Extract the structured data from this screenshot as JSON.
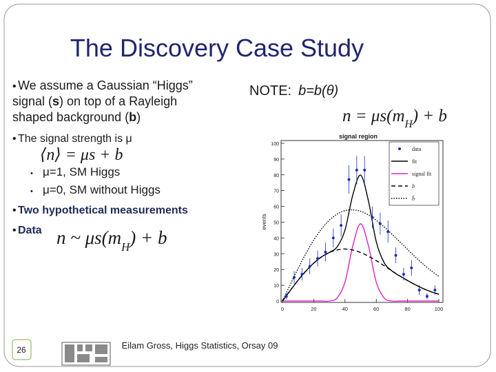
{
  "header": {
    "title": "The Discovery Case Study"
  },
  "bullets": {
    "intro": [
      [
        {
          "t": "We assume a Gaussian “Higgs”"
        }
      ],
      [
        {
          "t": "signal ("
        },
        {
          "t": "s",
          "bold": true
        },
        {
          "t": ") on top of a Rayleigh"
        }
      ],
      [
        {
          "t": "shaped background ("
        },
        {
          "t": "b",
          "bold": true
        },
        {
          "t": ")"
        }
      ]
    ],
    "strength": "The signal strength is μ",
    "strength_formula": [
      {
        "t": "⟨n⟩ = μs + b"
      }
    ],
    "cases": [
      "μ=1, SM Higgs",
      "μ=0, SM without Higgs"
    ],
    "measurements": "Two hypothetical measurements",
    "data": "Data",
    "data_formula": [
      {
        "t": "n ~ μs(m"
      },
      {
        "t": "H",
        "sub": true
      },
      {
        "t": ") + b"
      }
    ]
  },
  "note": {
    "label": "NOTE:",
    "text": "b=b(θ)",
    "formula": [
      {
        "t": "n = μs(m"
      },
      {
        "t": "H",
        "sub": true
      },
      {
        "t": ") + b"
      }
    ]
  },
  "footer": {
    "text": "Eilam Gross, Higgs Statistics, Orsay 09",
    "page": "26"
  },
  "chart_data": {
    "type": "line",
    "title": "signal region",
    "ylabel": "events",
    "xlim": [
      0,
      100
    ],
    "xticks": [
      0,
      20,
      40,
      60,
      80,
      100
    ],
    "ylim": [
      0,
      100
    ],
    "yticks": [
      0,
      10,
      20,
      30,
      40,
      50,
      60,
      70,
      80,
      90,
      100
    ],
    "points": {
      "name": "data",
      "color": "#1a2fb0",
      "x": [
        2.5,
        7.5,
        12.5,
        17.5,
        22.5,
        27.5,
        32.5,
        37.5,
        42.5,
        47.5,
        52.5,
        57.5,
        62.5,
        67.5,
        72.5,
        77.5,
        82.5,
        87.5,
        92.5,
        97.5
      ],
      "values": [
        3,
        15,
        17,
        22,
        27,
        31,
        40,
        48,
        77,
        83,
        83,
        53,
        49,
        44,
        29,
        17,
        21,
        7,
        3,
        7
      ],
      "errors": [
        2,
        4,
        4,
        5,
        5,
        6,
        6,
        7,
        9,
        9,
        9,
        7,
        7,
        7,
        5,
        4,
        5,
        3,
        2,
        3
      ]
    },
    "x": [
      0,
      5,
      10,
      15,
      20,
      25,
      30,
      35,
      40,
      45,
      50,
      55,
      60,
      65,
      70,
      75,
      80,
      85,
      90,
      95,
      100
    ],
    "series": [
      {
        "name": "fit",
        "color": "#000000",
        "dash": "none",
        "values": [
          0,
          6.7,
          13.2,
          19,
          24,
          28,
          30.8,
          34.4,
          45,
          67.3,
          79.8,
          63.4,
          37.6,
          24.4,
          19.1,
          15.9,
          13,
          10.3,
          7.9,
          5.9,
          4.3
        ]
      },
      {
        "name": "signal fit",
        "color": "#e020c0",
        "dash": "none",
        "values": [
          0,
          0,
          0,
          0,
          0,
          0,
          0,
          2,
          12,
          35,
          49,
          35,
          12,
          2,
          0,
          0,
          0,
          0,
          0,
          0,
          0
        ]
      },
      {
        "name": "b",
        "color": "#000000",
        "dash": "6 4",
        "values": [
          0,
          6.7,
          13.2,
          19,
          24,
          28,
          30.8,
          32.4,
          33,
          32.3,
          30.8,
          28.4,
          25.6,
          22.4,
          19.1,
          15.9,
          13,
          10.3,
          7.9,
          5.9,
          4.3
        ]
      },
      {
        "name": "b̂",
        "color": "#000000",
        "dash": "1.5 2",
        "values": [
          0,
          10.4,
          20.6,
          30.1,
          38.6,
          45.7,
          51.3,
          55.1,
          57.3,
          57.8,
          56.9,
          54.6,
          51.2,
          47.1,
          42.4,
          37.6,
          32.7,
          27.9,
          23.4,
          19.3,
          15.6
        ]
      }
    ]
  }
}
